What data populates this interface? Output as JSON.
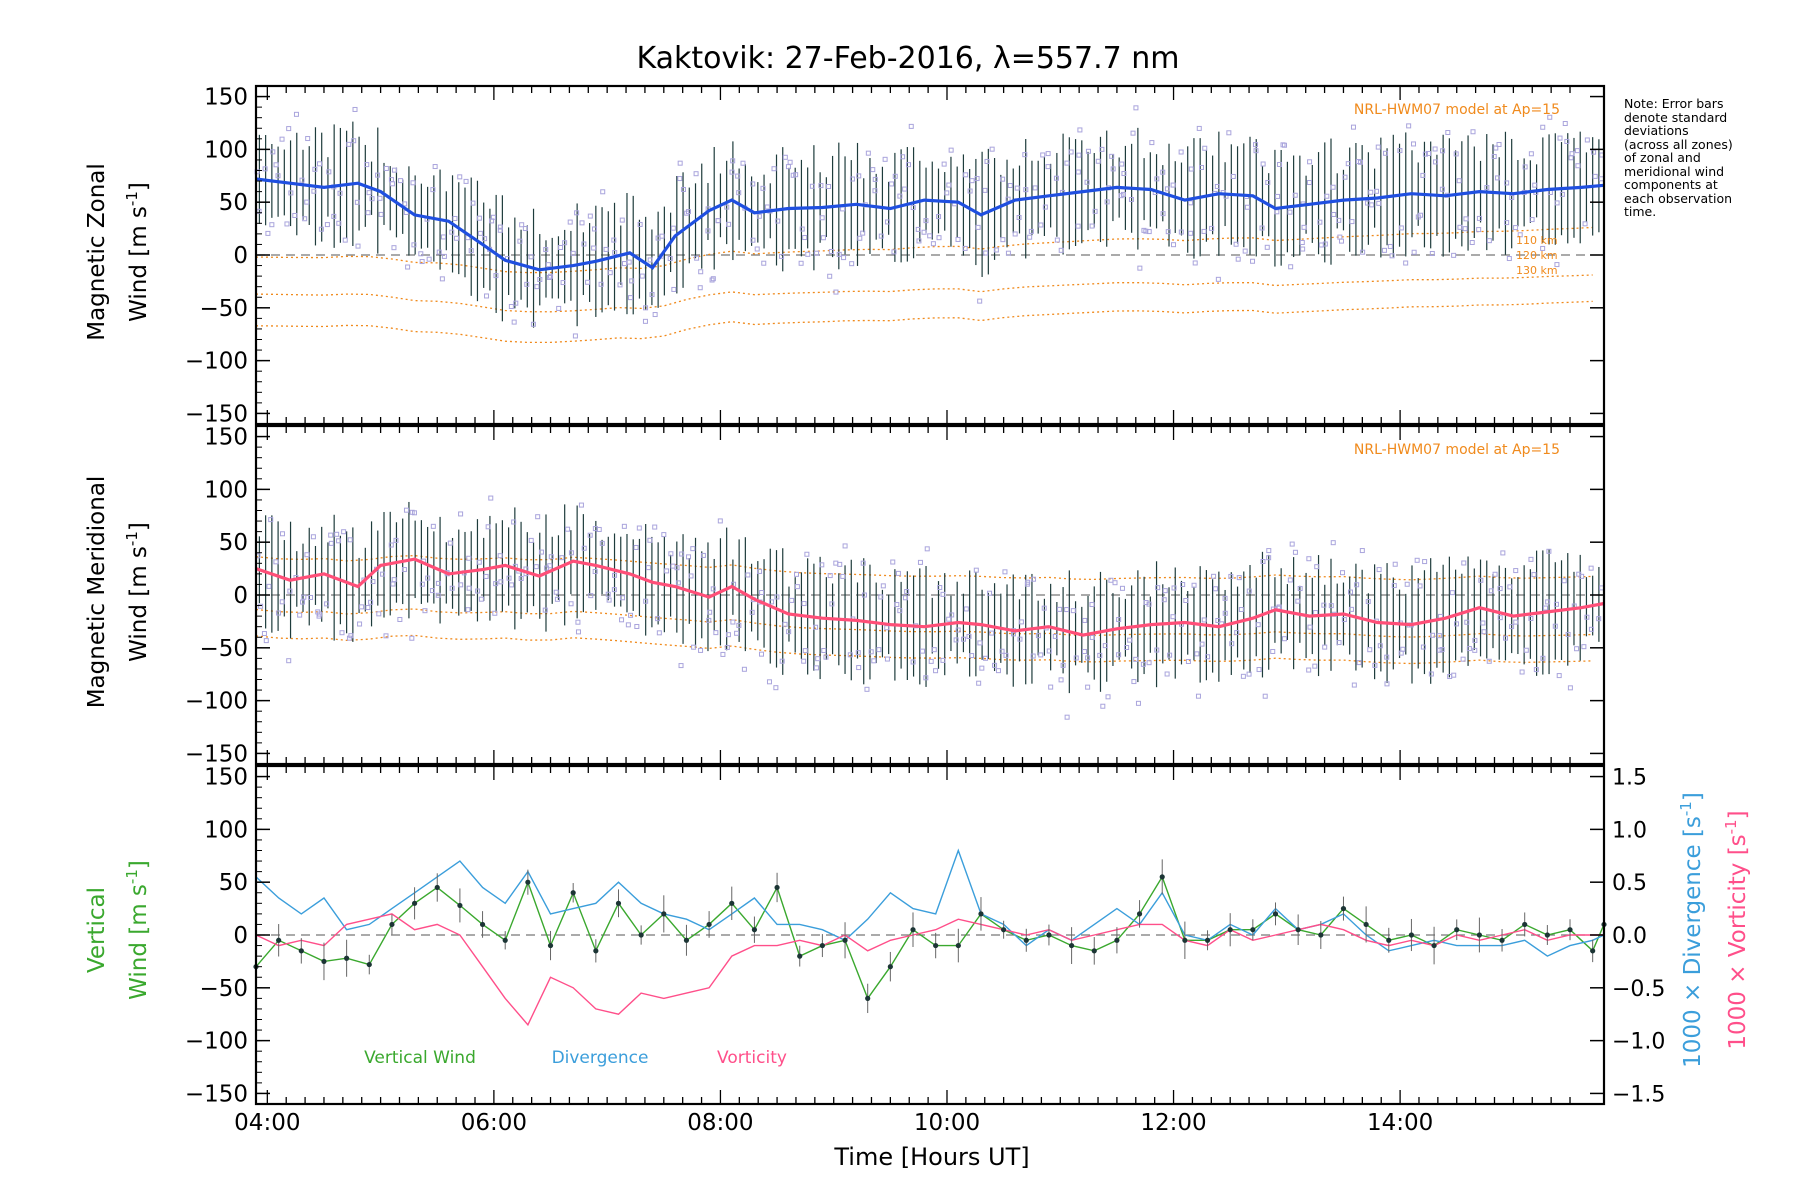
{
  "chart_data": {
    "title": "Kaktovik: 27-Feb-2016, λ=557.7 nm",
    "xlabel": "Time [Hours UT]",
    "x_ticks": [
      "04:00",
      "06:00",
      "08:00",
      "10:00",
      "12:00",
      "14:00"
    ],
    "xlim_hours": [
      3.9,
      15.8
    ],
    "note_lines": [
      "Note: Error bars",
      "denote standard",
      "deviations",
      "(across all zones)",
      "of zonal and",
      "meridional wind",
      "components at",
      "each observation",
      "time."
    ],
    "colors": {
      "zonal": "#1f4fe0",
      "meridional": "#ff4f78",
      "vertical": "#3aa82e",
      "divergence": "#3b9edb",
      "vorticity": "#ff4f8a",
      "model": "#f08a1c",
      "raw": "#a9a4dc",
      "errbar": "#1e3c3c"
    },
    "panels": [
      {
        "type": "line",
        "ylabel_line1": "Magnetic Zonal",
        "ylabel_line2": "Wind [m s",
        "ylim": [
          -160,
          160
        ],
        "yticks": [
          -150,
          -100,
          -50,
          0,
          50,
          100,
          150
        ],
        "model_label": "NRL-HWM07 model at Ap=15",
        "altitude_labels": [
          "110 km",
          "120 km",
          "130 km"
        ],
        "series": [
          {
            "x": [
              3.9,
              4.2,
              4.5,
              4.8,
              5.0,
              5.3,
              5.6,
              5.9,
              6.1,
              6.4,
              6.7,
              6.9,
              7.2,
              7.4,
              7.6,
              7.9,
              8.1,
              8.3,
              8.6,
              8.9,
              9.2,
              9.5,
              9.8,
              10.1,
              10.3,
              10.6,
              10.9,
              11.2,
              11.5,
              11.8,
              12.1,
              12.4,
              12.7,
              12.9,
              13.2,
              13.5,
              13.8,
              14.1,
              14.4,
              14.7,
              15.0,
              15.3,
              15.6,
              15.8
            ],
            "y": [
              72,
              68,
              64,
              68,
              60,
              38,
              32,
              10,
              -5,
              -14,
              -10,
              -6,
              2,
              -12,
              18,
              42,
              52,
              40,
              44,
              45,
              48,
              44,
              52,
              50,
              38,
              52,
              56,
              60,
              64,
              62,
              52,
              58,
              56,
              44,
              48,
              52,
              54,
              58,
              56,
              60,
              58,
              62,
              64,
              66
            ]
          }
        ]
      },
      {
        "type": "line",
        "ylabel_line1": "Magnetic Meridional",
        "ylabel_line2": "Wind [m s",
        "ylim": [
          -160,
          160
        ],
        "yticks": [
          -150,
          -100,
          -50,
          0,
          50,
          100,
          150
        ],
        "model_label": "NRL-HWM07 model at Ap=15",
        "series": [
          {
            "x": [
              3.9,
              4.2,
              4.5,
              4.8,
              5.0,
              5.3,
              5.6,
              5.9,
              6.1,
              6.4,
              6.7,
              6.9,
              7.2,
              7.4,
              7.6,
              7.9,
              8.1,
              8.3,
              8.6,
              8.9,
              9.2,
              9.5,
              9.8,
              10.1,
              10.3,
              10.6,
              10.9,
              11.2,
              11.5,
              11.8,
              12.1,
              12.4,
              12.7,
              12.9,
              13.2,
              13.5,
              13.8,
              14.1,
              14.4,
              14.7,
              15.0,
              15.3,
              15.6,
              15.8
            ],
            "y": [
              25,
              14,
              20,
              8,
              28,
              34,
              20,
              24,
              28,
              18,
              32,
              28,
              20,
              12,
              8,
              -2,
              8,
              -4,
              -18,
              -22,
              -24,
              -28,
              -30,
              -26,
              -28,
              -34,
              -30,
              -38,
              -32,
              -28,
              -26,
              -30,
              -22,
              -14,
              -20,
              -18,
              -26,
              -28,
              -22,
              -12,
              -20,
              -16,
              -12,
              -8
            ]
          }
        ]
      },
      {
        "type": "line",
        "ylabel_line1": "Vertical",
        "ylabel_line2": "Wind [m s",
        "ylim": [
          -160,
          160
        ],
        "yticks": [
          -150,
          -100,
          -50,
          0,
          50,
          100,
          150
        ],
        "y2lim": [
          -1.6,
          1.6
        ],
        "y2ticks": [
          -1.5,
          -1.0,
          -0.5,
          0.0,
          0.5,
          1.0,
          1.5
        ],
        "y2label_divergence": "1000 × Divergence [s",
        "y2label_vorticity": "1000 × Vorticity [s",
        "legend": [
          "Vertical Wind",
          "Divergence",
          "Vorticity"
        ],
        "series": [
          {
            "name": "Vertical Wind",
            "x": [
              3.9,
              4.1,
              4.3,
              4.5,
              4.7,
              4.9,
              5.1,
              5.3,
              5.5,
              5.7,
              5.9,
              6.1,
              6.3,
              6.5,
              6.7,
              6.9,
              7.1,
              7.3,
              7.5,
              7.7,
              7.9,
              8.1,
              8.3,
              8.5,
              8.7,
              8.9,
              9.1,
              9.3,
              9.5,
              9.7,
              9.9,
              10.1,
              10.3,
              10.5,
              10.7,
              10.9,
              11.1,
              11.3,
              11.5,
              11.7,
              11.9,
              12.1,
              12.3,
              12.5,
              12.7,
              12.9,
              13.1,
              13.3,
              13.5,
              13.7,
              13.9,
              14.1,
              14.3,
              14.5,
              14.7,
              14.9,
              15.1,
              15.3,
              15.5,
              15.7,
              15.8
            ],
            "y": [
              -30,
              -5,
              -15,
              -25,
              -22,
              -28,
              10,
              30,
              45,
              28,
              10,
              -5,
              50,
              -10,
              40,
              -15,
              30,
              0,
              20,
              -5,
              10,
              30,
              5,
              45,
              -20,
              -10,
              -5,
              -60,
              -30,
              5,
              -10,
              -10,
              20,
              5,
              -5,
              0,
              -10,
              -15,
              -5,
              20,
              55,
              -5,
              -5,
              5,
              5,
              20,
              5,
              0,
              25,
              10,
              -5,
              0,
              -10,
              5,
              0,
              -5,
              10,
              0,
              5,
              -15,
              10
            ]
          },
          {
            "name": "Divergence",
            "x": [
              3.9,
              4.1,
              4.3,
              4.5,
              4.7,
              4.9,
              5.1,
              5.3,
              5.5,
              5.7,
              5.9,
              6.1,
              6.3,
              6.5,
              6.7,
              6.9,
              7.1,
              7.3,
              7.5,
              7.7,
              7.9,
              8.1,
              8.3,
              8.5,
              8.7,
              8.9,
              9.1,
              9.3,
              9.5,
              9.7,
              9.9,
              10.1,
              10.3,
              10.5,
              10.7,
              10.9,
              11.1,
              11.3,
              11.5,
              11.7,
              11.9,
              12.1,
              12.3,
              12.5,
              12.7,
              12.9,
              13.1,
              13.3,
              13.5,
              13.7,
              13.9,
              14.1,
              14.3,
              14.5,
              14.7,
              14.9,
              15.1,
              15.3,
              15.5,
              15.7,
              15.8
            ],
            "y": [
              0.55,
              0.35,
              0.2,
              0.35,
              0.05,
              0.1,
              0.25,
              0.4,
              0.55,
              0.7,
              0.45,
              0.3,
              0.6,
              0.2,
              0.25,
              0.3,
              0.5,
              0.3,
              0.2,
              0.15,
              0.05,
              0.2,
              0.35,
              0.1,
              0.1,
              0.05,
              -0.05,
              0.15,
              0.4,
              0.25,
              0.2,
              0.8,
              0.2,
              0.1,
              -0.1,
              0.05,
              -0.05,
              0.1,
              0.25,
              0.1,
              0.4,
              0.0,
              -0.05,
              0.1,
              0.0,
              0.25,
              0.05,
              0.1,
              0.2,
              0.0,
              -0.15,
              -0.1,
              -0.05,
              -0.1,
              -0.1,
              -0.1,
              -0.05,
              -0.2,
              -0.1,
              -0.05,
              0.0
            ]
          },
          {
            "name": "Vorticity",
            "x": [
              3.9,
              4.1,
              4.3,
              4.5,
              4.7,
              4.9,
              5.1,
              5.3,
              5.5,
              5.7,
              5.9,
              6.1,
              6.3,
              6.5,
              6.7,
              6.9,
              7.1,
              7.3,
              7.5,
              7.7,
              7.9,
              8.1,
              8.3,
              8.5,
              8.7,
              8.9,
              9.1,
              9.3,
              9.5,
              9.7,
              9.9,
              10.1,
              10.3,
              10.5,
              10.7,
              10.9,
              11.1,
              11.3,
              11.5,
              11.7,
              11.9,
              12.1,
              12.3,
              12.5,
              12.7,
              12.9,
              13.1,
              13.3,
              13.5,
              13.7,
              13.9,
              14.1,
              14.3,
              14.5,
              14.7,
              14.9,
              15.1,
              15.3,
              15.5,
              15.7,
              15.8
            ],
            "y": [
              0.0,
              -0.1,
              -0.05,
              -0.1,
              0.1,
              0.15,
              0.2,
              0.05,
              0.1,
              0.0,
              -0.3,
              -0.6,
              -0.85,
              -0.4,
              -0.5,
              -0.7,
              -0.75,
              -0.55,
              -0.6,
              -0.55,
              -0.5,
              -0.2,
              -0.1,
              -0.1,
              -0.05,
              -0.1,
              0.0,
              -0.15,
              -0.05,
              0.0,
              0.05,
              0.15,
              0.1,
              0.05,
              0.0,
              0.05,
              -0.05,
              0.0,
              0.05,
              0.1,
              0.1,
              -0.05,
              -0.1,
              0.05,
              -0.05,
              0.0,
              0.05,
              0.1,
              0.05,
              -0.05,
              -0.1,
              -0.05,
              -0.1,
              0.0,
              -0.05,
              0.0,
              0.05,
              -0.05,
              0.0,
              0.0,
              0.0
            ]
          }
        ]
      }
    ]
  }
}
